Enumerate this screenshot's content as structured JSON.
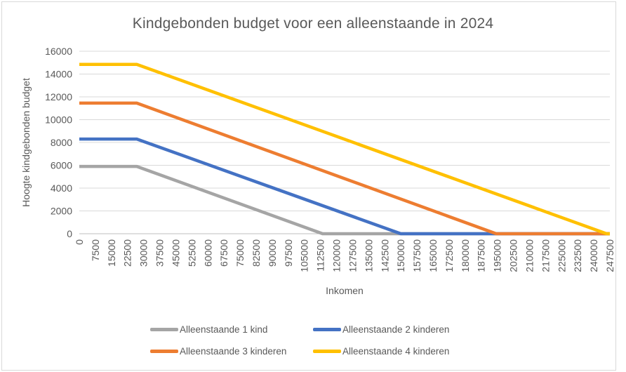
{
  "title": "Kindgebonden budget voor een alleenstaande in 2024",
  "chart_data": {
    "type": "line",
    "title": "Kindgebonden budget voor een alleenstaande in 2024",
    "x_axis": {
      "title": "Inkomen",
      "min": 0,
      "max": 247500,
      "tick_step": 7500,
      "ticks": [
        0,
        7500,
        15000,
        22500,
        30000,
        37500,
        45000,
        52500,
        60000,
        67500,
        75000,
        82500,
        90000,
        97500,
        105000,
        112500,
        120000,
        127500,
        135000,
        142500,
        150000,
        157500,
        165000,
        172500,
        180000,
        187500,
        195000,
        202500,
        210000,
        217500,
        225000,
        232500,
        240000,
        247500
      ],
      "tick_label_rotation_deg": -90
    },
    "y_axis": {
      "title": "Hoogte kindgebonden budget",
      "min": 0,
      "max": 16000,
      "tick_step": 2000,
      "ticks": [
        0,
        2000,
        4000,
        6000,
        8000,
        10000,
        12000,
        14000,
        16000
      ]
    },
    "grid": "horizontal",
    "legend_position": "bottom",
    "series": [
      {
        "name": "Alleenstaande 1 kind",
        "color": "#A5A5A5",
        "max_value": 5900,
        "phaseout_start_income": 26800,
        "zero_income": 113500,
        "points": [
          [
            0,
            5900
          ],
          [
            26800,
            5900
          ],
          [
            113500,
            0
          ],
          [
            247500,
            0
          ]
        ]
      },
      {
        "name": "Alleenstaande 2 kinderen",
        "color": "#4472C4",
        "max_value": 8300,
        "phaseout_start_income": 26800,
        "zero_income": 150000,
        "points": [
          [
            0,
            8300
          ],
          [
            26800,
            8300
          ],
          [
            150000,
            0
          ],
          [
            247500,
            0
          ]
        ]
      },
      {
        "name": "Alleenstaande 3 kinderen",
        "color": "#ED7D31",
        "max_value": 11450,
        "phaseout_start_income": 26800,
        "zero_income": 194500,
        "points": [
          [
            0,
            11450
          ],
          [
            26800,
            11450
          ],
          [
            194500,
            0
          ],
          [
            247500,
            0
          ]
        ]
      },
      {
        "name": "Alleenstaande 4 kinderen",
        "color": "#FFC000",
        "max_value": 14850,
        "phaseout_start_income": 26800,
        "zero_income": 246000,
        "points": [
          [
            0,
            14850
          ],
          [
            26800,
            14850
          ],
          [
            246000,
            0
          ],
          [
            247500,
            0
          ]
        ]
      }
    ],
    "style": {
      "gridline_color": "#D9D9D9",
      "axis_line_color": "#BFBFBF",
      "text_color": "#595959",
      "frame_border_color": "#D9D9D9",
      "line_width": 4.5
    }
  }
}
